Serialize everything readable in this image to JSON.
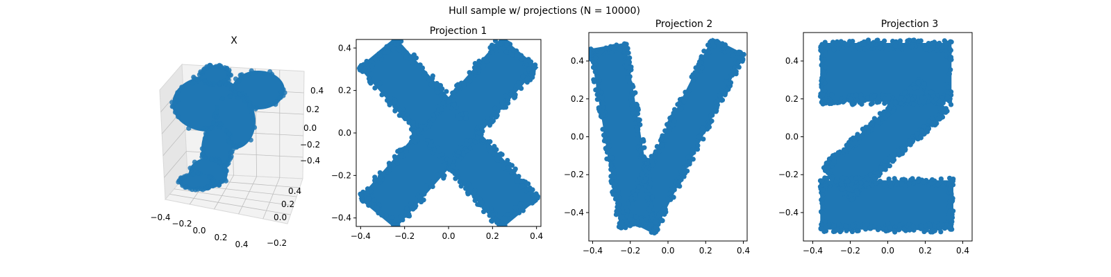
{
  "suptitle": "Hull sample w/ projections (N = 10000)",
  "colors": {
    "points": "#1f77b4",
    "pane_light": "#f2f2f2",
    "pane_dark": "#e6e6e6",
    "axis": "#000000"
  },
  "chart_data": [
    {
      "type": "scatter",
      "projection": "3d",
      "title": "X",
      "xlim": [
        -0.4,
        0.4
      ],
      "ylim": [
        -0.4,
        0.4
      ],
      "zlim": [
        -0.5,
        0.5
      ],
      "xticks": [
        "−0.4",
        "−0.2",
        "0.0",
        "0.2",
        "0.4"
      ],
      "yticks": [
        "−0.2",
        "0.0",
        "0.2",
        "0.4"
      ],
      "zticks": [
        "−0.4",
        "−0.2",
        "0.0",
        "0.2",
        "0.4"
      ],
      "grid": true,
      "shape": "letter X, Y and Z hull (3D point cloud)",
      "n_points": 10000
    },
    {
      "type": "scatter",
      "title": "Projection 1",
      "shape": "letter X",
      "xlim": [
        -0.42,
        0.42
      ],
      "ylim": [
        -0.44,
        0.44
      ],
      "xticks": [
        "−0.4",
        "−0.2",
        "0.0",
        "0.2",
        "0.4"
      ],
      "yticks": [
        "−0.4",
        "−0.2",
        "0.0",
        "0.2",
        "0.4"
      ],
      "grid": false,
      "series": [
        {
          "color": "#1f77b4",
          "strokes": [
            {
              "from": [
                -0.325,
                0.38
              ],
              "to": [
                0.325,
                -0.38
              ],
              "half_width": 0.11
            },
            {
              "from": [
                -0.325,
                -0.38
              ],
              "to": [
                0.325,
                0.38
              ],
              "half_width": 0.11
            }
          ]
        }
      ]
    },
    {
      "type": "scatter",
      "title": "Projection 2",
      "shape": "letter Y",
      "xlim": [
        -0.42,
        0.42
      ],
      "ylim": [
        -0.55,
        0.55
      ],
      "xticks": [
        "−0.4",
        "−0.2",
        "0.0",
        "0.2",
        "0.4"
      ],
      "yticks": [
        "−0.4",
        "−0.2",
        "0.0",
        "0.2",
        "0.4"
      ],
      "grid": false,
      "series": [
        {
          "color": "#1f77b4",
          "strokes": [
            {
              "from": [
                -0.32,
                0.48
              ],
              "to": [
                -0.16,
                -0.47
              ],
              "half_width": 0.095
            },
            {
              "from": [
                0.32,
                0.48
              ],
              "to": [
                -0.16,
                -0.47
              ],
              "half_width": 0.095
            }
          ]
        }
      ]
    },
    {
      "type": "scatter",
      "title": "Projection 3",
      "shape": "letter Z",
      "xlim": [
        -0.45,
        0.45
      ],
      "ylim": [
        -0.55,
        0.55
      ],
      "xticks": [
        "−0.4",
        "−0.2",
        "0.0",
        "0.2",
        "0.4"
      ],
      "yticks": [
        "−0.4",
        "−0.2",
        "0.0",
        "0.2",
        "0.4"
      ],
      "grid": false,
      "series": [
        {
          "color": "#1f77b4",
          "strokes": [
            {
              "from": [
                -0.36,
                0.34
              ],
              "to": [
                0.34,
                0.34
              ],
              "half_width": 0.155
            },
            {
              "from": [
                -0.36,
                -0.36
              ],
              "to": [
                0.35,
                -0.36
              ],
              "half_width": 0.13
            },
            {
              "from": [
                0.25,
                0.22
              ],
              "to": [
                -0.28,
                -0.25
              ],
              "half_width": 0.11
            }
          ]
        }
      ]
    }
  ]
}
